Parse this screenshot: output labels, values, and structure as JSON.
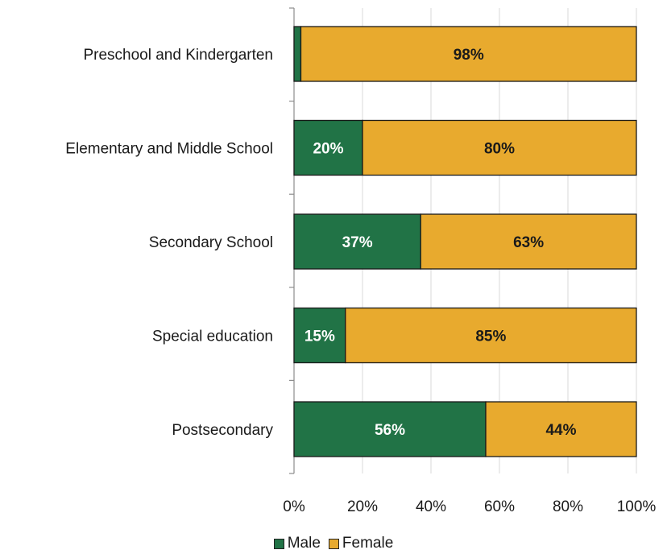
{
  "chart_data": {
    "type": "bar",
    "orientation": "horizontal",
    "stacked": true,
    "categories": [
      "Preschool and Kindergarten",
      "Elementary and Middle School",
      "Secondary School",
      "Special education",
      "Postsecondary"
    ],
    "series": [
      {
        "name": "Male",
        "values": [
          2,
          20,
          37,
          15,
          56
        ],
        "labels": [
          "",
          "20%",
          "37%",
          "15%",
          "56%"
        ],
        "color": "#217346",
        "label_color": "#ffffff"
      },
      {
        "name": "Female",
        "values": [
          98,
          80,
          63,
          85,
          44
        ],
        "labels": [
          "98%",
          "80%",
          "63%",
          "85%",
          "44%"
        ],
        "color": "#E8AA2E",
        "label_color": "#1a1a1a"
      }
    ],
    "xlim": [
      0,
      100
    ],
    "xticks": [
      "0%",
      "20%",
      "40%",
      "60%",
      "80%",
      "100%"
    ],
    "title": "",
    "xlabel": "",
    "ylabel": "",
    "grid": true,
    "legend_position": "bottom"
  }
}
